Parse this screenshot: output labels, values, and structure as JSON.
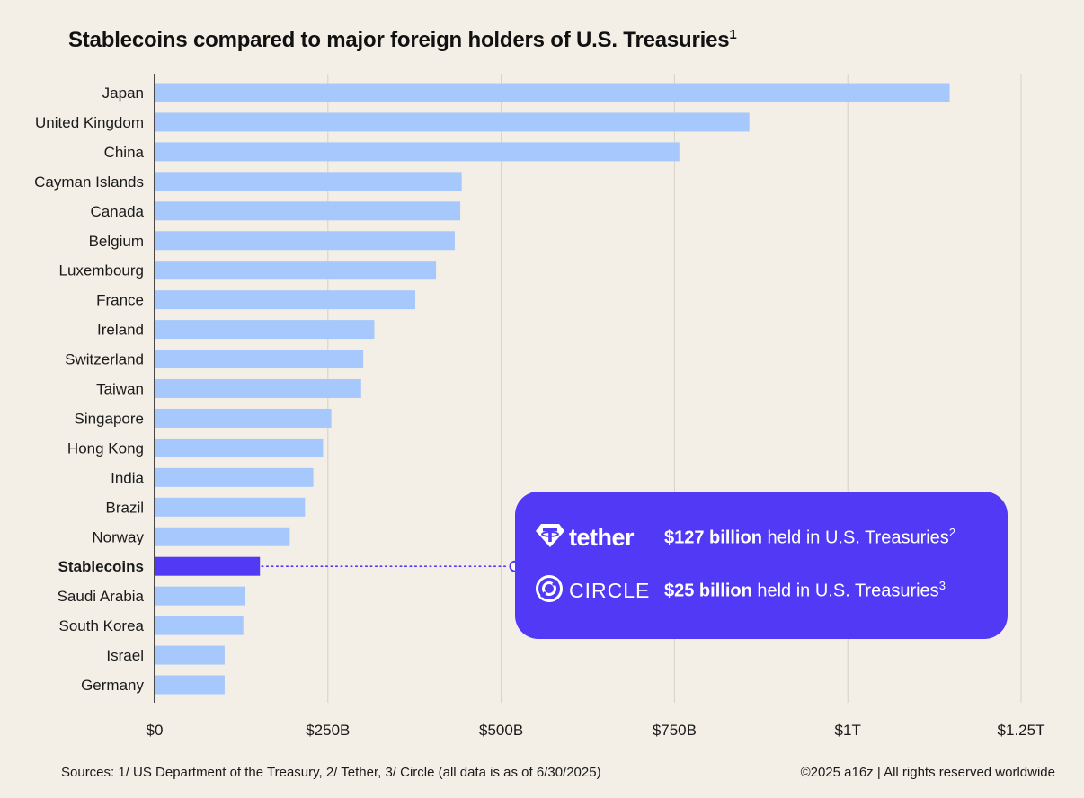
{
  "title": "Stablecoins compared to major foreign holders of U.S. Treasuries",
  "title_marker": "1",
  "chart_data": {
    "type": "bar",
    "orientation": "horizontal",
    "title": "Stablecoins compared to major foreign holders of U.S. Treasuries",
    "unit": "USD billions",
    "categories": [
      "Japan",
      "United Kingdom",
      "China",
      "Cayman Islands",
      "Canada",
      "Belgium",
      "Luxembourg",
      "France",
      "Ireland",
      "Switzerland",
      "Taiwan",
      "Singapore",
      "Hong Kong",
      "India",
      "Brazil",
      "Norway",
      "Stablecoins",
      "Saudi Arabia",
      "South Korea",
      "Israel",
      "Germany"
    ],
    "values": [
      1147,
      858,
      757,
      443,
      441,
      433,
      406,
      376,
      317,
      301,
      298,
      255,
      243,
      229,
      217,
      195,
      152,
      131,
      128,
      101,
      101
    ],
    "highlight": "Stablecoins",
    "xlim": [
      0,
      1250
    ],
    "xticks": [
      0,
      250,
      500,
      750,
      1000,
      1250
    ],
    "xtick_labels": [
      "$0",
      "$250B",
      "$500B",
      "$750B",
      "$1T",
      "$1.25T"
    ],
    "grid": "vertical",
    "colors": {
      "bar": "#a6c8fc",
      "highlight": "#5139f5",
      "grid": "#d6d1c8",
      "axis": "#111111"
    }
  },
  "callout": {
    "rows": [
      {
        "brand": "tether",
        "icon": "tether-logo-icon",
        "amount": "$127 billion",
        "text": " held in U.S. Treasuries",
        "marker": "2"
      },
      {
        "brand": "CIRCLE",
        "icon": "circle-logo-icon",
        "amount": "$25 billion",
        "text": " held in U.S. Treasuries",
        "marker": "3"
      }
    ],
    "color": "#5139f5"
  },
  "footer": {
    "sources": "Sources: 1/ US Department of the Treasury, 2/ Tether, 3/ Circle (all data is as of 6/30/2025)",
    "copyright": "©2025 a16z | All rights reserved worldwide"
  }
}
